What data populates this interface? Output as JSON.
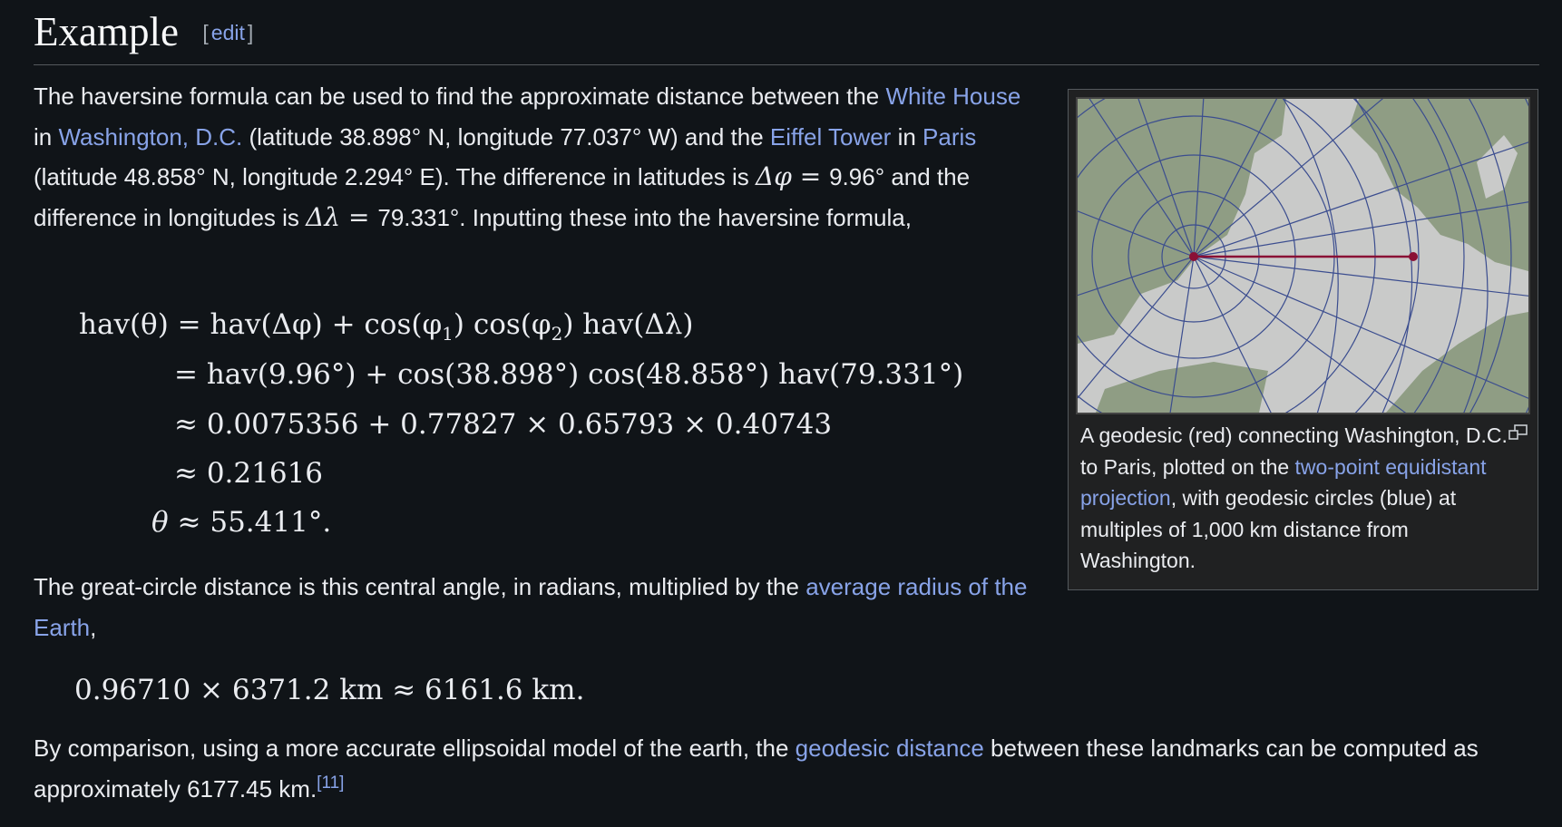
{
  "heading": {
    "title": "Example",
    "edit_open": "[",
    "edit_label": "edit",
    "edit_close": "]"
  },
  "para1": {
    "t1": "The haversine formula can be used to find the approximate distance between the ",
    "l1": "White House",
    "t2": " in ",
    "l2": "Washington, D.C.",
    "t3": " (latitude 38.898° N, longitude 77.037° W) and the ",
    "l3": "Eiffel Tower",
    "t4": " in ",
    "l4": "Paris",
    "t5": " (latitude 48.858° N, longitude 2.294° E). The difference in latitudes is ",
    "dphi_sym": "Δφ",
    "eq1": " = ",
    "t6": "9.96° and the difference in longitudes is ",
    "dlam_sym": "Δλ",
    "eq2": " = ",
    "t7": "79.331°. Inputting these into the haversine formula,"
  },
  "formula": {
    "line1": {
      "lhs": "hav(θ)",
      "rhs_a": "= hav(Δφ) + cos(φ",
      "sub1": "1",
      "rhs_b": ") cos(φ",
      "sub2": "2",
      "rhs_c": ") hav(Δλ)"
    },
    "line2": "= hav(9.96°) + cos(38.898°) cos(48.858°) hav(79.331°)",
    "line3": "≈ 0.0075356 + 0.77827 × 0.65793 × 0.40743",
    "line4": "≈ 0.21616",
    "line5": {
      "lhs": "θ",
      "rhs": " ≈ 55.411°."
    }
  },
  "para2": {
    "t1": "The great-circle distance is this central angle, in radians, multiplied by the ",
    "l1": "average radius of the Earth",
    "t2": ","
  },
  "formula2": "0.96710 × 6371.2 km ≈ 6161.6 km.",
  "para3": {
    "t1": "By comparison, using a more accurate ellipsoidal model of the earth, the ",
    "l1": "geodesic distance",
    "t2": " between these landmarks can be computed as approximately 6177.45 km.",
    "ref": "[11]"
  },
  "thumb": {
    "caption_t1": "A geodesic (red) connecting Washington, D.C. to Paris, plotted on the ",
    "caption_l1": "two-point equidistant projection",
    "caption_t2": ", with geodesic circles (blue) at multiples of 1,000 km distance from Washington.",
    "magnify_icon": "magnify-icon",
    "colors": {
      "land": "#8f9d84",
      "sea": "#c9cac9",
      "grid": "#3b4d8f",
      "geodesic": "#8a1035"
    }
  }
}
